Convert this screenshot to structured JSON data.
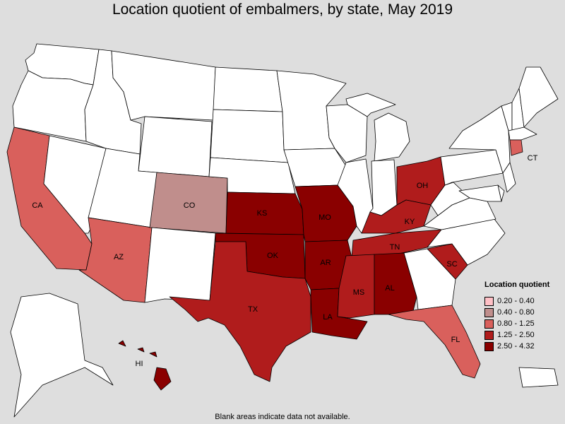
{
  "title": "Location quotient of embalmers, by state, May 2019",
  "legend": {
    "title": "Location quotient",
    "items": [
      {
        "label": "0.20 - 0.40",
        "color": "#ffc0c6"
      },
      {
        "label": "0.40 - 0.80",
        "color": "#c08e8c"
      },
      {
        "label": "0.80 - 1.25",
        "color": "#d9605c"
      },
      {
        "label": "1.25 - 2.50",
        "color": "#b01c1c"
      },
      {
        "label": "2.50 - 4.32",
        "color": "#8a0000"
      }
    ]
  },
  "footnote": "Blank areas indicate data not available.",
  "colors": {
    "no_data": "#ffffff",
    "background": "#dedede"
  },
  "states": {
    "WA": {
      "cls": null
    },
    "OR": {
      "cls": null
    },
    "CA": {
      "cls": 2,
      "label": "CA"
    },
    "NV": {
      "cls": null
    },
    "ID": {
      "cls": null
    },
    "MT": {
      "cls": null
    },
    "WY": {
      "cls": null
    },
    "UT": {
      "cls": null
    },
    "AZ": {
      "cls": 2,
      "label": "AZ"
    },
    "CO": {
      "cls": 1,
      "label": "CO"
    },
    "NM": {
      "cls": null
    },
    "ND": {
      "cls": null
    },
    "SD": {
      "cls": null
    },
    "NE": {
      "cls": null
    },
    "KS": {
      "cls": 4,
      "label": "KS"
    },
    "OK": {
      "cls": 4,
      "label": "OK"
    },
    "TX": {
      "cls": 3,
      "label": "TX"
    },
    "MN": {
      "cls": null
    },
    "IA": {
      "cls": null
    },
    "MO": {
      "cls": 4,
      "label": "MO"
    },
    "AR": {
      "cls": 4,
      "label": "AR"
    },
    "LA": {
      "cls": 4,
      "label": "LA"
    },
    "WI": {
      "cls": null
    },
    "IL": {
      "cls": null
    },
    "MI": {
      "cls": null
    },
    "MI_UP": {
      "cls": null
    },
    "IN": {
      "cls": null
    },
    "OH": {
      "cls": 3,
      "label": "OH"
    },
    "KY": {
      "cls": 3,
      "label": "KY"
    },
    "TN": {
      "cls": 3,
      "label": "TN"
    },
    "MS": {
      "cls": 3,
      "label": "MS"
    },
    "AL": {
      "cls": 4,
      "label": "AL"
    },
    "GA": {
      "cls": null
    },
    "FL": {
      "cls": 2,
      "label": "FL"
    },
    "SC": {
      "cls": 3,
      "label": "SC"
    },
    "NC": {
      "cls": null
    },
    "VA": {
      "cls": null
    },
    "WV": {
      "cls": null
    },
    "PA": {
      "cls": null
    },
    "NY": {
      "cls": null
    },
    "VT": {
      "cls": null
    },
    "NH": {
      "cls": null
    },
    "ME": {
      "cls": null
    },
    "MA": {
      "cls": null
    },
    "CT": {
      "cls": 2,
      "label": "CT"
    },
    "NJ": {
      "cls": null
    },
    "DE": {
      "cls": null
    },
    "MD": {
      "cls": null
    },
    "AK": {
      "cls": null
    },
    "HI": {
      "cls": 4,
      "label": "HI"
    },
    "PR": {
      "cls": null
    }
  }
}
